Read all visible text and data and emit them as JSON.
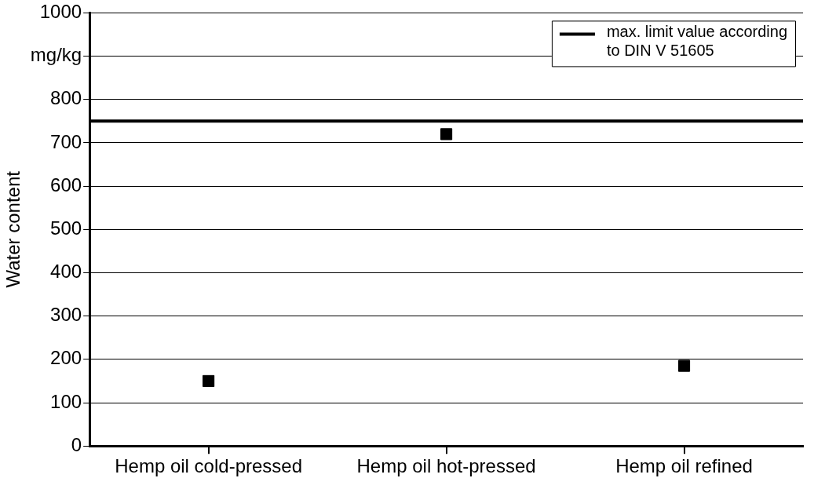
{
  "chart_data": {
    "type": "scatter",
    "ylabel": "Water content",
    "categories": [
      "Hemp oil cold-pressed",
      "Hemp oil hot-pressed",
      "Hemp oil refined"
    ],
    "series": [
      {
        "color": "#000000",
        "values": [
          150,
          720,
          185
        ]
      }
    ],
    "marker": "square",
    "ylim": [
      0,
      1000
    ],
    "yticks": [
      0,
      100,
      200,
      300,
      400,
      500,
      600,
      700,
      800,
      {
        "value": 900,
        "label": "mg/kg"
      },
      1000
    ],
    "grid": "y",
    "legend": "top right",
    "ref_lines": [
      {
        "axis": "y",
        "value": 750,
        "label": "max. limit value according to DIN V 51605",
        "color": "#000000"
      }
    ]
  }
}
